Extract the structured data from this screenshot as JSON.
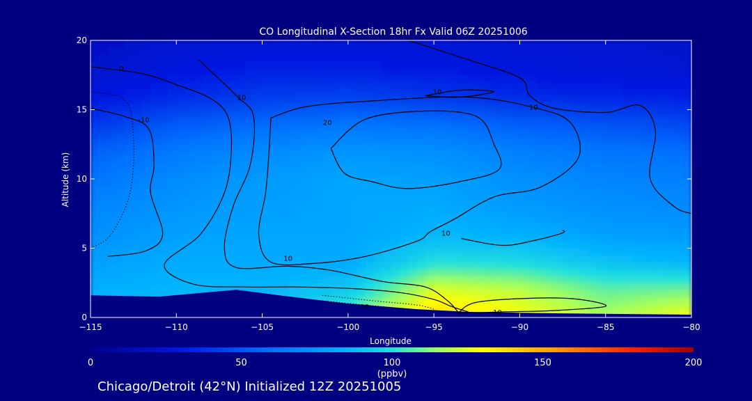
{
  "chart_data": {
    "type": "heatmap",
    "title": "CO Longitudinal X-Section 18hr  Fx Valid 06Z 20251006",
    "xlabel": "Longitude",
    "ylabel": "Altitude (km)",
    "xlim": [
      -115,
      -80
    ],
    "ylim": [
      0,
      20
    ],
    "x_ticks": [
      -115,
      -110,
      -105,
      -100,
      -95,
      -90,
      -85,
      -80
    ],
    "y_ticks": [
      0,
      5,
      10,
      15,
      20
    ],
    "x_tick_labels": [
      "−115",
      "−110",
      "−105",
      "−100",
      "−95",
      "−90",
      "−85",
      "−80"
    ],
    "y_tick_labels": [
      "0",
      "5",
      "10",
      "15",
      "20"
    ],
    "colorbar": {
      "range": [
        0,
        200
      ],
      "ticks": [
        0,
        50,
        100,
        150,
        200
      ],
      "tick_labels": [
        "0",
        "50",
        "100",
        "150",
        "200"
      ],
      "unit": "(ppbv)"
    },
    "field_rows": [
      {
        "alt": 20,
        "values": [
          20,
          24,
          26,
          26,
          26,
          25,
          24,
          22
        ]
      },
      {
        "alt": 18,
        "values": [
          22,
          28,
          32,
          32,
          30,
          28,
          26,
          24
        ]
      },
      {
        "alt": 16,
        "values": [
          28,
          36,
          42,
          44,
          40,
          36,
          34,
          32
        ]
      },
      {
        "alt": 14,
        "values": [
          40,
          52,
          58,
          62,
          60,
          54,
          50,
          46
        ]
      },
      {
        "alt": 12,
        "values": [
          55,
          64,
          70,
          74,
          72,
          66,
          62,
          60
        ]
      },
      {
        "alt": 10,
        "values": [
          62,
          70,
          76,
          80,
          78,
          72,
          68,
          66
        ]
      },
      {
        "alt": 8,
        "values": [
          68,
          74,
          78,
          80,
          82,
          76,
          72,
          70
        ]
      },
      {
        "alt": 6,
        "values": [
          72,
          78,
          80,
          80,
          86,
          84,
          78,
          76
        ]
      },
      {
        "alt": 4,
        "values": [
          78,
          82,
          82,
          82,
          100,
          98,
          90,
          86
        ]
      },
      {
        "alt": 2,
        "values": [
          84,
          86,
          86,
          92,
          125,
          120,
          108,
          110
        ]
      },
      {
        "alt": 0,
        "values": [
          88,
          88,
          90,
          110,
          140,
          130,
          118,
          130
        ]
      }
    ],
    "terrain": [
      {
        "lon": -115,
        "alt": 1.6
      },
      {
        "lon": -111,
        "alt": 1.5
      },
      {
        "lon": -106.5,
        "alt": 2.0
      },
      {
        "lon": -104,
        "alt": 1.6
      },
      {
        "lon": -100,
        "alt": 1.0
      },
      {
        "lon": -96,
        "alt": 0.6
      },
      {
        "lon": -93,
        "alt": 0.4
      },
      {
        "lon": -88,
        "alt": 0.3
      },
      {
        "lon": -80,
        "alt": 0.2
      }
    ],
    "contours": [
      {
        "level": "0",
        "label_at": [
          -113.2,
          17.8
        ],
        "points": [
          [
            -115,
            18.1
          ],
          [
            -112,
            17.6
          ],
          [
            -110,
            16.8
          ],
          [
            -108,
            15.8
          ],
          [
            -107,
            14.5
          ],
          [
            -106.8,
            12
          ],
          [
            -107.2,
            9
          ],
          [
            -108.6,
            6
          ],
          [
            -110.7,
            3.8
          ],
          [
            -109,
            2.4
          ],
          [
            -106,
            2.2
          ],
          [
            -103,
            2.2
          ],
          [
            -100,
            2.1
          ],
          [
            -97,
            1.8
          ],
          [
            -95,
            1.3
          ],
          [
            -94,
            0.8
          ],
          [
            -93,
            0.4
          ]
        ]
      },
      {
        "level": "10",
        "label_at": [
          -106.2,
          15.7
        ],
        "points": [
          [
            -108.7,
            18.6
          ],
          [
            -106.5,
            16
          ],
          [
            -105.5,
            14.5
          ],
          [
            -105.7,
            11
          ],
          [
            -106.7,
            8
          ],
          [
            -107.2,
            5
          ],
          [
            -106.5,
            3.6
          ],
          [
            -103.5,
            3.7
          ],
          [
            -101,
            3.4
          ],
          [
            -98,
            2.6
          ],
          [
            -95.5,
            2.2
          ],
          [
            -94.2,
            1.2
          ],
          [
            -93.6,
            0.4
          ]
        ]
      },
      {
        "level": "10",
        "label_at": [
          -103.5,
          4.1
        ],
        "points": [
          [
            -104.5,
            14.4
          ],
          [
            -102.5,
            15.2
          ],
          [
            -99,
            15.6
          ],
          [
            -93,
            15.9
          ],
          [
            -89,
            15.1
          ],
          [
            -87,
            14
          ],
          [
            -86.6,
            11.5
          ],
          [
            -88.8,
            9.4
          ],
          [
            -91.5,
            8.7
          ],
          [
            -93.8,
            7.1
          ],
          [
            -95.2,
            6.2
          ],
          [
            -96,
            5.5
          ],
          [
            -99,
            4.4
          ],
          [
            -102,
            3.9
          ],
          [
            -104.5,
            4.0
          ],
          [
            -105.2,
            6
          ],
          [
            -104.8,
            9
          ],
          [
            -104.6,
            12
          ],
          [
            -104.5,
            14.4
          ]
        ]
      },
      {
        "level": "10",
        "label_at": [
          -89.2,
          15.0
        ],
        "points": [
          [
            -96.5,
            20
          ],
          [
            -93,
            18.6
          ],
          [
            -90,
            17.3
          ],
          [
            -89.4,
            16
          ],
          [
            -88,
            15.1
          ],
          [
            -85,
            14.8
          ],
          [
            -83,
            15.3
          ],
          [
            -82.1,
            13.5
          ],
          [
            -82.4,
            10
          ],
          [
            -81,
            8
          ],
          [
            -80,
            7.5
          ]
        ]
      },
      {
        "level": "10",
        "label_at": [
          -94.3,
          5.9
        ],
        "points": [
          [
            -93.4,
            5.7
          ],
          [
            -91,
            5.2
          ],
          [
            -89,
            5.6
          ],
          [
            -87.5,
            6.1
          ],
          [
            -87.5,
            6.3
          ]
        ]
      },
      {
        "level": "-10",
        "label_at": [
          -111.9,
          14.1
        ],
        "points": [
          [
            -115,
            15.1
          ],
          [
            -113,
            14.5
          ],
          [
            -111.6,
            13.6
          ],
          [
            -111.3,
            11
          ],
          [
            -111.5,
            9
          ],
          [
            -110.8,
            6
          ],
          [
            -111.8,
            4.8
          ],
          [
            -114,
            4.4
          ]
        ]
      },
      {
        "level": "20",
        "label_at": [
          -101.2,
          13.9
        ],
        "points": [
          [
            -101,
            12.2
          ],
          [
            -99,
            14.3
          ],
          [
            -95.5,
            14.9
          ],
          [
            -92.5,
            14.5
          ],
          [
            -91.5,
            12.5
          ],
          [
            -91.2,
            10.7
          ],
          [
            -93.5,
            9.8
          ],
          [
            -96.5,
            9.3
          ],
          [
            -98.6,
            9.8
          ],
          [
            -100.2,
            10.4
          ],
          [
            -101,
            12.2
          ]
        ]
      },
      {
        "level": "10",
        "label_at": [
          -94.8,
          16.1
        ],
        "points": [
          [
            -95.5,
            16.0
          ],
          [
            -93.5,
            16.4
          ],
          [
            -91.5,
            16.3
          ],
          [
            -93.5,
            15.9
          ],
          [
            -95.5,
            16.0
          ]
        ]
      },
      {
        "level": "10",
        "label_at": [
          -91.3,
          0.2
        ],
        "points": [
          [
            -93.6,
            0.3
          ],
          [
            -92.5,
            1.1
          ],
          [
            -89,
            1.4
          ],
          [
            -86.5,
            1.3
          ],
          [
            -85,
            0.8
          ],
          [
            -88,
            0.5
          ],
          [
            -91,
            0.4
          ],
          [
            -93.6,
            0.3
          ]
        ]
      }
    ],
    "dotted_contours": [
      {
        "level": "-10",
        "points": [
          [
            -115,
            16.3
          ],
          [
            -113,
            15.7
          ],
          [
            -112.5,
            13
          ],
          [
            -112.7,
            9
          ],
          [
            -113.8,
            6
          ],
          [
            -115,
            5
          ]
        ]
      },
      {
        "level": "-10",
        "points": [
          [
            -101.5,
            1.6
          ],
          [
            -98.5,
            1.2
          ],
          [
            -96,
            0.9
          ],
          [
            -95,
            0.6
          ]
        ]
      },
      {
        "level": "-10",
        "label_at": [
          -99.1,
          0.6
        ],
        "points": [
          [
            -101.5,
            1.2
          ],
          [
            -99,
            0.9
          ],
          [
            -96.5,
            0.6
          ]
        ]
      }
    ]
  },
  "footer": "Chicago/Detroit (42°N) Initialized 12Z 20251005"
}
